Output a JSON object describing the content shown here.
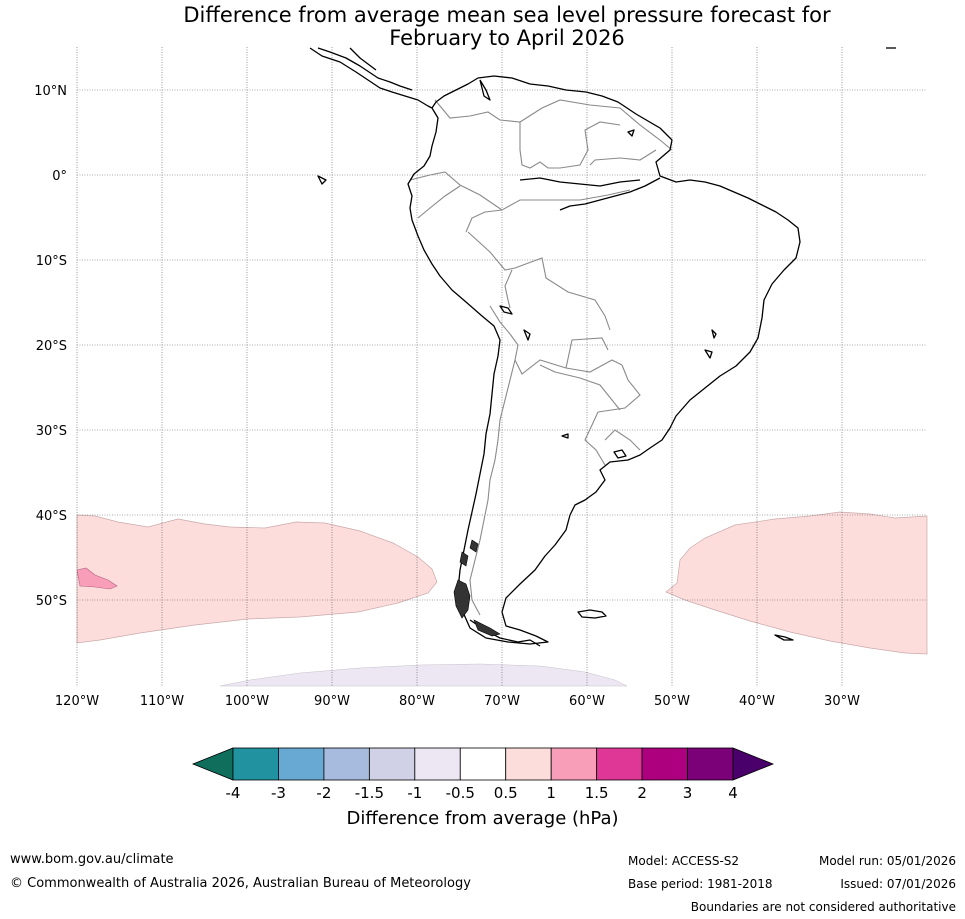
{
  "title": {
    "line1": "Difference from average mean sea level pressure forecast for",
    "line2": "February to April 2026"
  },
  "map": {
    "lat_labels": [
      "10°N",
      "0°",
      "10°S",
      "20°S",
      "30°S",
      "40°S",
      "50°S"
    ],
    "lon_labels": [
      "120°W",
      "110°W",
      "100°W",
      "90°W",
      "80°W",
      "70°W",
      "60°W",
      "50°W",
      "40°W",
      "30°W"
    ],
    "lon_range": [
      -120,
      -20
    ],
    "lat_range": [
      15,
      -60
    ],
    "anomaly_regions": [
      {
        "name": "south-pacific-positive",
        "category": "0.5 to 1"
      },
      {
        "name": "south-pacific-core",
        "category": "1 to 1.5"
      },
      {
        "name": "south-atlantic-positive",
        "category": "0.5 to 1"
      },
      {
        "name": "antarctic-negative",
        "category": "-1 to -0.5"
      }
    ]
  },
  "colorbar": {
    "labels": [
      "-4",
      "-3",
      "-2",
      "-1.5",
      "-1",
      "-0.5",
      "0.5",
      "1",
      "1.5",
      "2",
      "3",
      "4"
    ],
    "colors": [
      "#0f6e5c",
      "#2193a0",
      "#68a9d3",
      "#a6bbdd",
      "#d0d1e6",
      "#ece7f2",
      "#ffffff",
      "#fddddc",
      "#f89eb8",
      "#df3796",
      "#ad007e",
      "#7a0177",
      "#49006a"
    ],
    "label": "Difference from average (hPa)"
  },
  "footer": {
    "website": "www.bom.gov.au/climate",
    "copyright": "© Commonwealth of Australia 2026, Australian Bureau of Meteorology",
    "model": "Model: ACCESS-S2",
    "base_period": "Base period: 1981-2018",
    "model_run": "Model run: 05/01/2026",
    "issued": "Issued: 07/01/2026",
    "disclaimer": "Boundaries are not considered authoritative"
  }
}
